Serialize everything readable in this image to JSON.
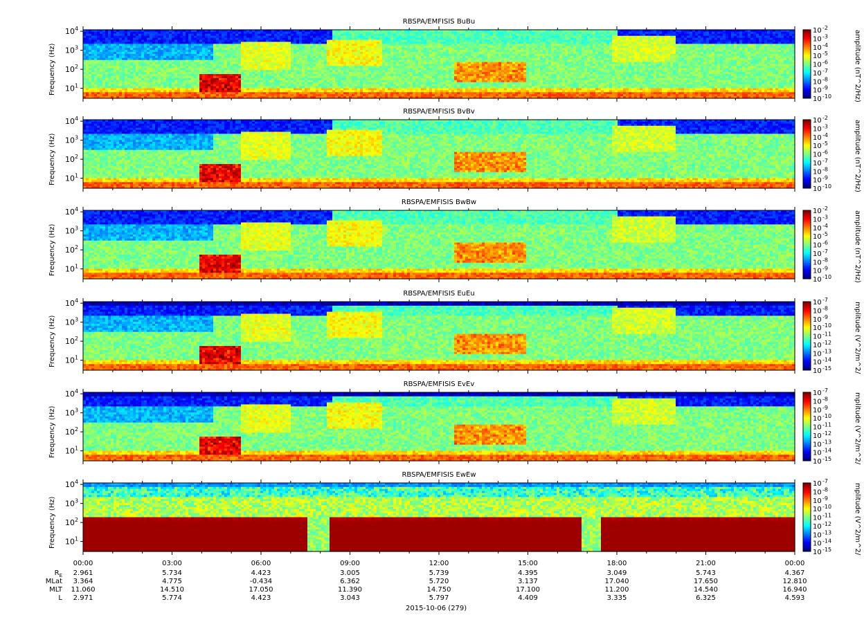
{
  "chart_data": {
    "type": "heatmap",
    "panels": [
      {
        "title": "RBSPA/EMFISIS  BuBu",
        "ylabel": "Frequency (Hz)",
        "cblabel": "amplitude (nT^2/Hz)",
        "cb_ticks": [
          "-2",
          "-3",
          "-4",
          "-5",
          "-6",
          "-7",
          "-8",
          "-9",
          "-10"
        ],
        "cb_range": [
          -10,
          -2
        ],
        "kind": "B"
      },
      {
        "title": "RBSPA/EMFISIS  BvBv",
        "ylabel": "Frequency (Hz)",
        "cblabel": "amplitude (nT^2/Hz)",
        "cb_ticks": [
          "-2",
          "-3",
          "-4",
          "-5",
          "-6",
          "-7",
          "-8",
          "-9",
          "-10"
        ],
        "cb_range": [
          -10,
          -2
        ],
        "kind": "B"
      },
      {
        "title": "RBSPA/EMFISIS  BwBw",
        "ylabel": "Frequency (Hz)",
        "cblabel": "amplitude (nT^2/Hz)",
        "cb_ticks": [
          "-2",
          "-3",
          "-4",
          "-5",
          "-6",
          "-7",
          "-8",
          "-9",
          "-10"
        ],
        "cb_range": [
          -10,
          -2
        ],
        "kind": "Bw"
      },
      {
        "title": "RBSPA/EMFISIS  EuEu",
        "ylabel": "Frequency (Hz)",
        "cblabel": "mplitude (V^2/m^2/",
        "cb_ticks": [
          "-7",
          "-8",
          "-9",
          "-10",
          "-11",
          "-12",
          "-13",
          "-14",
          "-15"
        ],
        "cb_range": [
          -15,
          -7
        ],
        "kind": "E"
      },
      {
        "title": "RBSPA/EMFISIS  EvEv",
        "ylabel": "Frequency (Hz)",
        "cblabel": "mplitude (V^2/m^2/",
        "cb_ticks": [
          "-7",
          "-8",
          "-9",
          "-10",
          "-11",
          "-12",
          "-13",
          "-14",
          "-15"
        ],
        "cb_range": [
          -15,
          -7
        ],
        "kind": "E"
      },
      {
        "title": "RBSPA/EMFISIS  EwEw",
        "ylabel": "Frequency (Hz)",
        "cblabel": "mplitude (V^2/m^2/",
        "cb_ticks": [
          "-7",
          "-8",
          "-9",
          "-10",
          "-11",
          "-12",
          "-13",
          "-14",
          "-15"
        ],
        "cb_range": [
          -15,
          -7
        ],
        "kind": "Ew"
      }
    ],
    "y_ticks": [
      "4",
      "3",
      "2",
      "1"
    ],
    "y_tick_base": "10",
    "y_range_hz": [
      3,
      12000
    ],
    "y_scale": "log",
    "x_ticks": [
      "00:00",
      "03:00",
      "06:00",
      "09:00",
      "12:00",
      "15:00",
      "18:00",
      "21:00",
      "00:00"
    ],
    "x_range_hours": [
      0,
      24
    ],
    "footer": {
      "labels": [
        "R",
        "MLat",
        "MLT",
        "L"
      ],
      "re_subscript": "E",
      "rows": [
        [
          "2.961",
          "5.734",
          "4.423",
          "3.005",
          "5.739",
          "4.395",
          "3.049",
          "5.743",
          "4.367"
        ],
        [
          "3.364",
          "4.775",
          "-0.434",
          "6.362",
          "5.720",
          "3.137",
          "17.040",
          "17.650",
          "12.810"
        ],
        [
          "11.060",
          "14.510",
          "17.050",
          "11.390",
          "14.750",
          "17.100",
          "11.200",
          "14.540",
          "16.940"
        ],
        [
          "2.971",
          "5.774",
          "4.423",
          "3.043",
          "5.797",
          "4.409",
          "3.335",
          "6.325",
          "4.593"
        ]
      ],
      "date": "2015-10-06 (279)"
    }
  }
}
